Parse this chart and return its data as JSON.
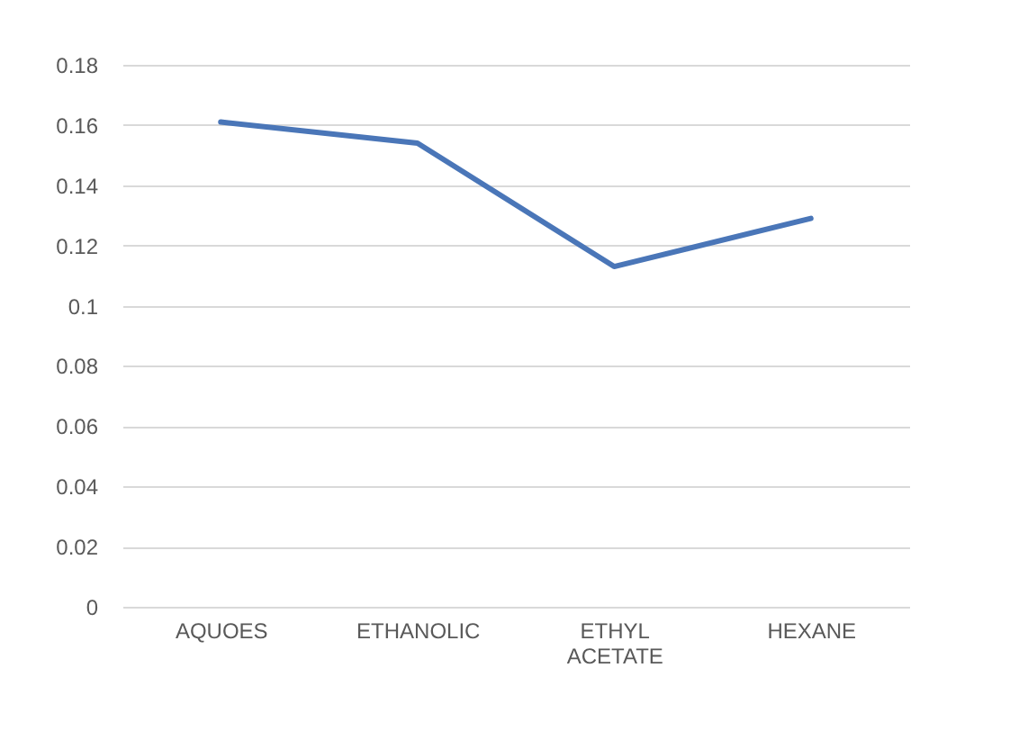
{
  "chart_data": {
    "type": "line",
    "categories": [
      "AQUOES",
      "ETHANOLIC",
      "ETHYL ACETATE",
      "HEXANE"
    ],
    "series": [
      {
        "color": "#4a76b8",
        "values": [
          0.161,
          0.154,
          0.113,
          0.129
        ]
      }
    ],
    "ylim": [
      0,
      0.18
    ],
    "yticks": [
      0,
      0.02,
      0.04,
      0.06,
      0.08,
      0.1,
      0.12,
      0.14,
      0.16,
      0.18
    ],
    "grid": "y",
    "marker": "none",
    "line_style": "solid"
  }
}
